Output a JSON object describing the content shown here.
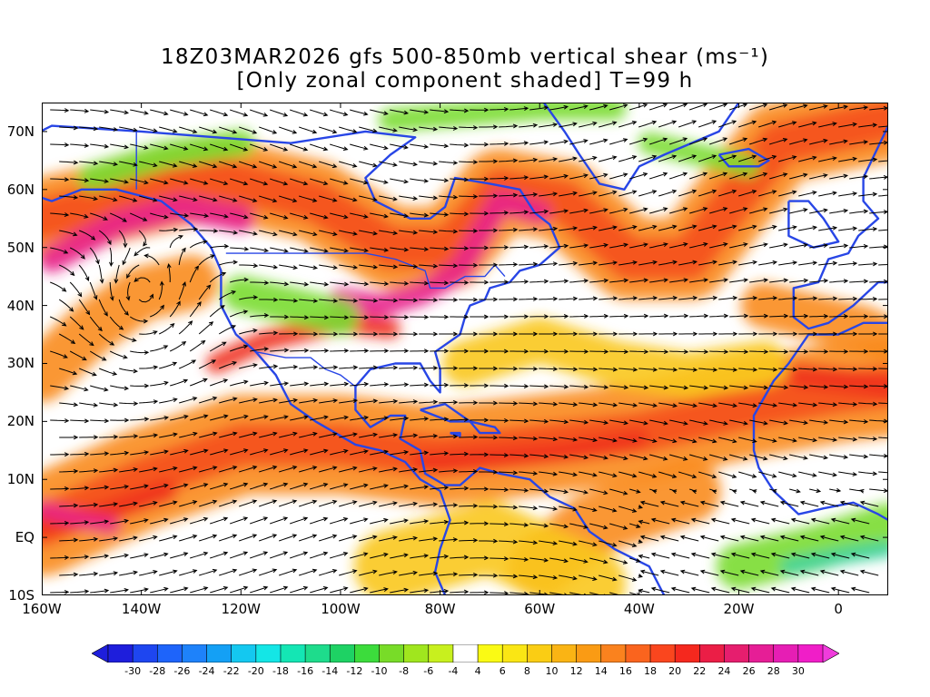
{
  "title": {
    "line1": "18Z03MAR2026 gfs 500-850mb vertical shear (ms⁻¹)",
    "line2": "[Only zonal component shaded] T=99 h"
  },
  "map": {
    "lat_labels": [
      {
        "label": "70N",
        "lat": 70
      },
      {
        "label": "60N",
        "lat": 60
      },
      {
        "label": "50N",
        "lat": 50
      },
      {
        "label": "40N",
        "lat": 40
      },
      {
        "label": "30N",
        "lat": 30
      },
      {
        "label": "20N",
        "lat": 20
      },
      {
        "label": "10N",
        "lat": 10
      },
      {
        "label": "EQ",
        "lat": 0
      },
      {
        "label": "10S",
        "lat": -10
      }
    ],
    "lon_labels": [
      {
        "label": "160W",
        "lon": -160
      },
      {
        "label": "140W",
        "lon": -140
      },
      {
        "label": "120W",
        "lon": -120
      },
      {
        "label": "100W",
        "lon": -100
      },
      {
        "label": "80W",
        "lon": -80
      },
      {
        "label": "60W",
        "lon": -60
      },
      {
        "label": "40W",
        "lon": -40
      },
      {
        "label": "20W",
        "lon": -20
      },
      {
        "label": "0",
        "lon": 0
      }
    ],
    "extent": {
      "lon_min": -160,
      "lon_max": 10,
      "lat_min": -10,
      "lat_max": 75
    },
    "field_colors": {
      "pink": "#e8228c",
      "red": "#f0321e",
      "orange_red": "#f5501e",
      "orange": "#fa8c1e",
      "yellow_orange": "#fac81e",
      "yellow": "#fafa1e",
      "green": "#7adc32",
      "cyan_green": "#3cd2a0",
      "blue": "#3c78ff"
    },
    "coastline_color": "#2846e6",
    "streamline_color": "#000000"
  },
  "colorbar": {
    "labels": [
      "-30",
      "-28",
      "-26",
      "-24",
      "-22",
      "-20",
      "-18",
      "-16",
      "-14",
      "-12",
      "-10",
      "-8",
      "-6",
      "-4",
      "4",
      "6",
      "8",
      "10",
      "12",
      "14",
      "16",
      "18",
      "20",
      "22",
      "24",
      "26",
      "28",
      "30"
    ],
    "colors": [
      "#1e1edc",
      "#1e46f0",
      "#1e64fa",
      "#1e82fa",
      "#14a0f5",
      "#14c8f0",
      "#14e6e6",
      "#14e6b4",
      "#1edc8c",
      "#1ed264",
      "#3cdc3c",
      "#78dc28",
      "#a0e61e",
      "#c8f01e",
      "#ffffff",
      "#fafa14",
      "#fae614",
      "#facd14",
      "#fab414",
      "#fa9b14",
      "#fa821e",
      "#fa641e",
      "#fa461e",
      "#f5281e",
      "#eb1e46",
      "#e61e6e",
      "#e61e96",
      "#e61eb4",
      "#f01ec8"
    ],
    "left_arrow_color": "#1e1edc",
    "right_arrow_color": "#f03cdc"
  }
}
